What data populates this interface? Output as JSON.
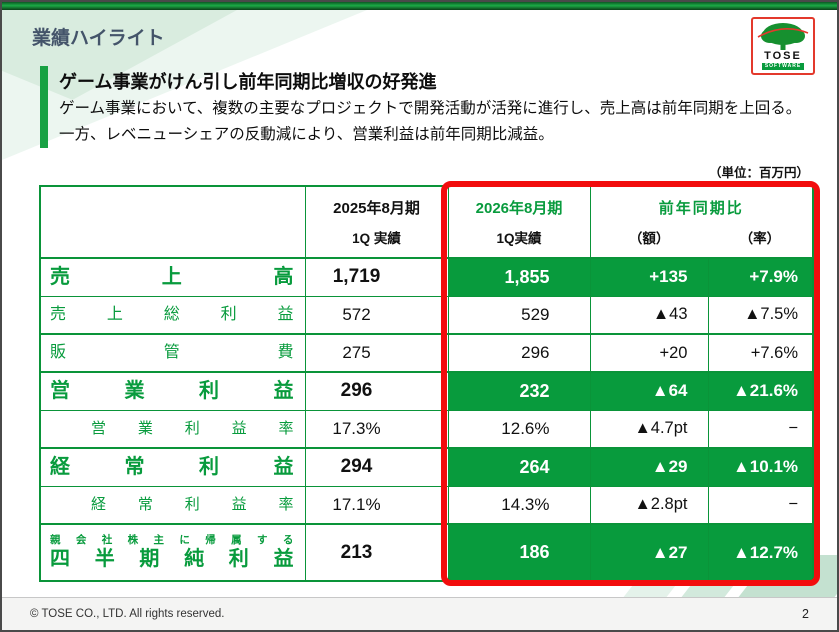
{
  "colors": {
    "brand_green": "#089B3D",
    "highlight_red": "#F20D0D",
    "title_navy": "#44546A"
  },
  "slide": {
    "page_title": "業績ハイライト",
    "page_number": "2",
    "copyright": "© TOSE CO., LTD. All rights reserved.",
    "unit_note": "（単位：百万円）"
  },
  "logo": {
    "wordmark": "TOSE",
    "subtext": "SOFTWARE"
  },
  "message": {
    "headline": "ゲーム事業がけん引し前年同期比増収の好発進",
    "body": "ゲーム事業において、複数の主要なプロジェクトで開発活動が活発に進行し、売上高は前年同期を上回る。一方、レベニューシェアの反動減により、営業利益は前年同期比減益。"
  },
  "table": {
    "header": {
      "prev_period": "2025年8月期",
      "prev_sub": "1Q 実績",
      "curr_period": "2026年8月期",
      "curr_sub": "1Q実績",
      "yoy": "前年同期比",
      "yoy_amount": "（額）",
      "yoy_rate": "（率）"
    },
    "rows": [
      {
        "label": "売上高",
        "prev": "1,719",
        "curr": "1,855",
        "amount": "+135",
        "rate": "+7.9%",
        "bold": true,
        "highlight": true,
        "group_start": true
      },
      {
        "label": "売上総利益",
        "prev": "572",
        "curr": "529",
        "amount": "▲43",
        "rate": "▲7.5%",
        "bold": false,
        "highlight": false,
        "group_start": false
      },
      {
        "label": "販管費",
        "prev": "275",
        "curr": "296",
        "amount": "+20",
        "rate": "+7.6%",
        "bold": false,
        "highlight": false,
        "group_start": true
      },
      {
        "label": "営業利益",
        "prev": "296",
        "curr": "232",
        "amount": "▲64",
        "rate": "▲21.6%",
        "bold": true,
        "highlight": true,
        "group_start": true
      },
      {
        "label": "営業利益率",
        "prev": "17.3%",
        "curr": "12.6%",
        "amount": "▲4.7pt",
        "rate": "−",
        "bold": false,
        "highlight": false,
        "group_start": false,
        "indent": true
      },
      {
        "label": "経常利益",
        "prev": "294",
        "curr": "264",
        "amount": "▲29",
        "rate": "▲10.1%",
        "bold": true,
        "highlight": true,
        "group_start": true
      },
      {
        "label": "経常利益率",
        "prev": "17.1%",
        "curr": "14.3%",
        "amount": "▲2.8pt",
        "rate": "−",
        "bold": false,
        "highlight": false,
        "group_start": false,
        "indent": true
      },
      {
        "label": "四半期純利益",
        "label_note": "親会社株主に帰属する",
        "prev": "213",
        "curr": "186",
        "amount": "▲27",
        "rate": "▲12.7%",
        "bold": true,
        "highlight": true,
        "group_start": true,
        "tall": true
      }
    ]
  }
}
